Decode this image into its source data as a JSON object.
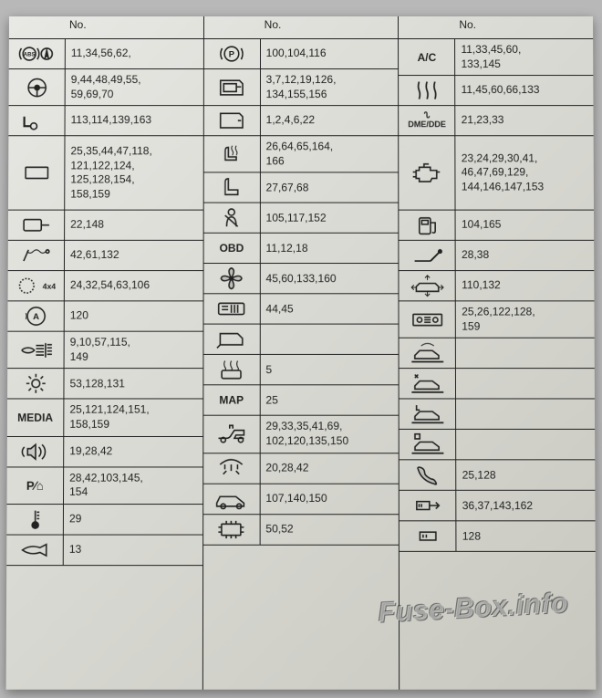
{
  "header": "No.",
  "watermark": "Fuse-Box.info",
  "columns": [
    {
      "rows": [
        {
          "icon": "abs",
          "label": "",
          "nums": "11,34,56,62,"
        },
        {
          "icon": "steering",
          "label": "",
          "nums": "9,44,48,49,55,\n59,69,70"
        },
        {
          "icon": "tow",
          "label": "",
          "nums": "113,114,139,163"
        },
        {
          "icon": "display",
          "label": "",
          "nums": "25,35,44,47,118,\n121,122,124,\n125,128,154,\n158,159",
          "tall": "h3"
        },
        {
          "icon": "mirror",
          "label": "",
          "nums": "22,148"
        },
        {
          "icon": "shock",
          "label": "",
          "nums": "42,61,132"
        },
        {
          "icon": "gear4x4",
          "label": "4x4",
          "nums": "24,32,54,63,106"
        },
        {
          "icon": "startstop",
          "label": "",
          "nums": "120"
        },
        {
          "icon": "headlight",
          "label": "",
          "nums": "9,10,57,115,\n149"
        },
        {
          "icon": "sun",
          "label": "",
          "nums": "53,128,131"
        },
        {
          "icon": "txt",
          "label": "MEDIA",
          "nums": "25,121,124,151,\n158,159"
        },
        {
          "icon": "speaker",
          "label": "",
          "nums": "19,28,42"
        },
        {
          "icon": "parkhome",
          "label": "P/⌂",
          "nums": "28,42,103,145,\n154"
        },
        {
          "icon": "thermo",
          "label": "",
          "nums": "29"
        },
        {
          "icon": "horn",
          "label": "",
          "nums": "13"
        }
      ]
    },
    {
      "rows": [
        {
          "icon": "pbrake",
          "label": "(P)",
          "nums": "100,104,116"
        },
        {
          "icon": "doorlock",
          "label": "",
          "nums": "3,7,12,19,126,\n134,155,156"
        },
        {
          "icon": "door",
          "label": "",
          "nums": "1,2,4,6,22"
        },
        {
          "icon": "seatheat",
          "label": "",
          "nums": "26,64,65,164,\n166"
        },
        {
          "icon": "seat",
          "label": "",
          "nums": "27,67,68"
        },
        {
          "icon": "seatbelt",
          "label": "",
          "nums": "105,117,152"
        },
        {
          "icon": "txt",
          "label": "OBD",
          "nums": "11,12,18"
        },
        {
          "icon": "fan",
          "label": "",
          "nums": "45,60,133,160"
        },
        {
          "icon": "carsys",
          "label": "",
          "nums": "44,45"
        },
        {
          "icon": "rear",
          "label": "",
          "nums": ""
        },
        {
          "icon": "defrost",
          "label": "",
          "nums": "5"
        },
        {
          "icon": "txt",
          "label": "MAP",
          "nums": "25"
        },
        {
          "icon": "jack",
          "label": "",
          "nums": "29,33,35,41,69,\n102,120,135,150"
        },
        {
          "icon": "domelight",
          "label": "",
          "nums": "20,28,42"
        },
        {
          "icon": "car",
          "label": "",
          "nums": "107,140,150"
        },
        {
          "icon": "ecu",
          "label": "",
          "nums": "50,52"
        }
      ]
    },
    {
      "rows": [
        {
          "icon": "txt",
          "label": "A/C",
          "nums": "11,33,45,60,\n133,145"
        },
        {
          "icon": "heatwaves",
          "label": "",
          "nums": "11,45,60,66,133"
        },
        {
          "icon": "dme",
          "label": "DME/DDE",
          "nums": "21,23,33"
        },
        {
          "icon": "engine",
          "label": "",
          "nums": "23,24,29,30,41,\n46,47,69,129,\n144,146,147,153",
          "tall": "h3"
        },
        {
          "icon": "fuel",
          "label": "",
          "nums": "104,165"
        },
        {
          "icon": "lever",
          "label": "",
          "nums": "28,38"
        },
        {
          "icon": "cararrows",
          "label": "",
          "nums": "110,132"
        },
        {
          "icon": "radio",
          "label": "",
          "nums": "25,26,122,128,\n159"
        },
        {
          "icon": "lift1",
          "label": "",
          "nums": ""
        },
        {
          "icon": "lift2",
          "label": "",
          "nums": ""
        },
        {
          "icon": "lift3",
          "label": "",
          "nums": ""
        },
        {
          "icon": "lift4",
          "label": "",
          "nums": ""
        },
        {
          "icon": "phone",
          "label": "",
          "nums": "25,128"
        },
        {
          "icon": "usbarrow",
          "label": "",
          "nums": "36,37,143,162"
        },
        {
          "icon": "usb",
          "label": "",
          "nums": "128"
        }
      ]
    }
  ]
}
